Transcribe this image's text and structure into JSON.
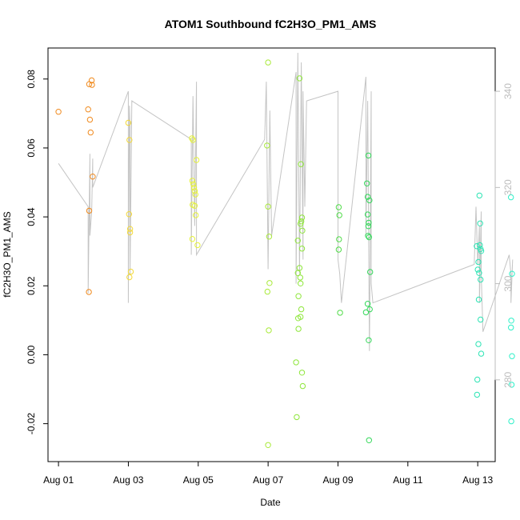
{
  "chart_data": {
    "type": "scatter",
    "title": "ATOM1 Southbound fC2H3O_PM1_AMS",
    "xlabel": "Date",
    "ylabel": "fC2H3O_PM1_AMS",
    "xlim": [
      -0.3,
      12.5
    ],
    "ylim": [
      -0.031,
      0.089
    ],
    "y2lim": [
      263,
      349
    ],
    "x_ticks": [
      {
        "value": 0,
        "label": "Aug 01"
      },
      {
        "value": 2,
        "label": "Aug 03"
      },
      {
        "value": 4,
        "label": "Aug 05"
      },
      {
        "value": 6,
        "label": "Aug 07"
      },
      {
        "value": 8,
        "label": "Aug 09"
      },
      {
        "value": 10,
        "label": "Aug 11"
      },
      {
        "value": 12,
        "label": "Aug 13"
      }
    ],
    "y_ticks": [
      {
        "value": -0.02,
        "label": "-0.02"
      },
      {
        "value": 0.0,
        "label": "0.00"
      },
      {
        "value": 0.02,
        "label": "0.02"
      },
      {
        "value": 0.04,
        "label": "0.04"
      },
      {
        "value": 0.06,
        "label": "0.06"
      },
      {
        "value": 0.08,
        "label": "0.08"
      }
    ],
    "y2_ticks": [
      {
        "value": 280,
        "label": "280"
      },
      {
        "value": 300,
        "label": "300"
      },
      {
        "value": 320,
        "label": "320"
      },
      {
        "value": 340,
        "label": "340"
      }
    ],
    "points": [
      {
        "x": 0.0,
        "y": 0.0705,
        "color": "#f08a1e"
      },
      {
        "x": 0.85,
        "y": 0.0712,
        "color": "#f08a1e"
      },
      {
        "x": 0.88,
        "y": 0.0785,
        "color": "#f08a1e"
      },
      {
        "x": 0.9,
        "y": 0.0682,
        "color": "#f08a1e"
      },
      {
        "x": 0.92,
        "y": 0.0645,
        "color": "#f08a1e"
      },
      {
        "x": 0.88,
        "y": 0.0418,
        "color": "#f08a1e"
      },
      {
        "x": 0.87,
        "y": 0.0182,
        "color": "#f08a1e"
      },
      {
        "x": 0.95,
        "y": 0.0796,
        "color": "#f08a1e"
      },
      {
        "x": 0.96,
        "y": 0.0783,
        "color": "#f08a1e"
      },
      {
        "x": 0.98,
        "y": 0.0517,
        "color": "#f08a1e"
      },
      {
        "x": 2.0,
        "y": 0.0673,
        "color": "#f3d93a"
      },
      {
        "x": 2.02,
        "y": 0.0408,
        "color": "#f3d93a"
      },
      {
        "x": 2.03,
        "y": 0.0623,
        "color": "#f3d93a"
      },
      {
        "x": 2.05,
        "y": 0.0365,
        "color": "#f3d93a"
      },
      {
        "x": 2.05,
        "y": 0.0355,
        "color": "#f3d93a"
      },
      {
        "x": 2.03,
        "y": 0.0225,
        "color": "#f3d93a"
      },
      {
        "x": 2.07,
        "y": 0.0241,
        "color": "#f3d93a"
      },
      {
        "x": 3.82,
        "y": 0.0628,
        "color": "#e6f23a"
      },
      {
        "x": 3.85,
        "y": 0.0623,
        "color": "#e6f23a"
      },
      {
        "x": 3.83,
        "y": 0.0505,
        "color": "#e6f23a"
      },
      {
        "x": 3.86,
        "y": 0.0495,
        "color": "#e6f23a"
      },
      {
        "x": 3.88,
        "y": 0.0485,
        "color": "#e6f23a"
      },
      {
        "x": 3.9,
        "y": 0.0475,
        "color": "#e6f23a"
      },
      {
        "x": 3.92,
        "y": 0.0465,
        "color": "#e6f23a"
      },
      {
        "x": 3.84,
        "y": 0.0435,
        "color": "#e6f23a"
      },
      {
        "x": 3.9,
        "y": 0.0432,
        "color": "#e6f23a"
      },
      {
        "x": 3.93,
        "y": 0.0405,
        "color": "#e6f23a"
      },
      {
        "x": 3.95,
        "y": 0.0565,
        "color": "#e6f23a"
      },
      {
        "x": 3.83,
        "y": 0.0336,
        "color": "#e6f23a"
      },
      {
        "x": 3.98,
        "y": 0.0318,
        "color": "#e6f23a"
      },
      {
        "x": 5.97,
        "y": 0.0607,
        "color": "#a9ea3a"
      },
      {
        "x": 6.0,
        "y": 0.0848,
        "color": "#a9ea3a"
      },
      {
        "x": 6.0,
        "y": 0.043,
        "color": "#a9ea3a"
      },
      {
        "x": 6.03,
        "y": 0.0343,
        "color": "#a9ea3a"
      },
      {
        "x": 6.04,
        "y": 0.0208,
        "color": "#a9ea3a"
      },
      {
        "x": 5.98,
        "y": 0.0183,
        "color": "#a9ea3a"
      },
      {
        "x": 6.02,
        "y": 0.0071,
        "color": "#a9ea3a"
      },
      {
        "x": 6.0,
        "y": -0.0262,
        "color": "#a9ea3a"
      },
      {
        "x": 6.9,
        "y": 0.0802,
        "color": "#8ee63a"
      },
      {
        "x": 6.94,
        "y": 0.0553,
        "color": "#8ee63a"
      },
      {
        "x": 6.97,
        "y": 0.0398,
        "color": "#8ee63a"
      },
      {
        "x": 6.95,
        "y": 0.0387,
        "color": "#8ee63a"
      },
      {
        "x": 6.93,
        "y": 0.038,
        "color": "#8ee63a"
      },
      {
        "x": 6.98,
        "y": 0.036,
        "color": "#8ee63a"
      },
      {
        "x": 6.85,
        "y": 0.0331,
        "color": "#8ee63a"
      },
      {
        "x": 6.97,
        "y": 0.0308,
        "color": "#8ee63a"
      },
      {
        "x": 6.85,
        "y": 0.0237,
        "color": "#8ee63a"
      },
      {
        "x": 6.9,
        "y": 0.0252,
        "color": "#8ee63a"
      },
      {
        "x": 6.92,
        "y": 0.0224,
        "color": "#8ee63a"
      },
      {
        "x": 6.93,
        "y": 0.0207,
        "color": "#8ee63a"
      },
      {
        "x": 6.87,
        "y": 0.017,
        "color": "#8ee63a"
      },
      {
        "x": 6.95,
        "y": 0.0132,
        "color": "#8ee63a"
      },
      {
        "x": 6.86,
        "y": 0.0106,
        "color": "#8ee63a"
      },
      {
        "x": 6.93,
        "y": 0.011,
        "color": "#8ee63a"
      },
      {
        "x": 6.87,
        "y": 0.0075,
        "color": "#8ee63a"
      },
      {
        "x": 6.8,
        "y": -0.0022,
        "color": "#8ee63a"
      },
      {
        "x": 6.97,
        "y": -0.0052,
        "color": "#8ee63a"
      },
      {
        "x": 6.99,
        "y": -0.0091,
        "color": "#8ee63a"
      },
      {
        "x": 6.82,
        "y": -0.0181,
        "color": "#8ee63a"
      },
      {
        "x": 8.02,
        "y": 0.0428,
        "color": "#52dc4a"
      },
      {
        "x": 8.04,
        "y": 0.0405,
        "color": "#52dc4a"
      },
      {
        "x": 8.03,
        "y": 0.0335,
        "color": "#52dc4a"
      },
      {
        "x": 8.02,
        "y": 0.0305,
        "color": "#52dc4a"
      },
      {
        "x": 8.06,
        "y": 0.0122,
        "color": "#52dc4a"
      },
      {
        "x": 8.87,
        "y": 0.0578,
        "color": "#34d85a"
      },
      {
        "x": 8.83,
        "y": 0.0497,
        "color": "#34d85a"
      },
      {
        "x": 8.85,
        "y": 0.0458,
        "color": "#34d85a"
      },
      {
        "x": 8.9,
        "y": 0.0448,
        "color": "#34d85a"
      },
      {
        "x": 8.85,
        "y": 0.0407,
        "color": "#34d85a"
      },
      {
        "x": 8.88,
        "y": 0.0383,
        "color": "#34d85a"
      },
      {
        "x": 8.87,
        "y": 0.0373,
        "color": "#34d85a"
      },
      {
        "x": 8.86,
        "y": 0.0345,
        "color": "#34d85a"
      },
      {
        "x": 8.89,
        "y": 0.0341,
        "color": "#34d85a"
      },
      {
        "x": 8.92,
        "y": 0.024,
        "color": "#34d85a"
      },
      {
        "x": 8.85,
        "y": 0.0148,
        "color": "#34d85a"
      },
      {
        "x": 8.91,
        "y": 0.0132,
        "color": "#34d85a"
      },
      {
        "x": 8.8,
        "y": 0.0123,
        "color": "#34d85a"
      },
      {
        "x": 8.88,
        "y": 0.0042,
        "color": "#34d85a"
      },
      {
        "x": 8.89,
        "y": -0.0248,
        "color": "#34d85a"
      },
      {
        "x": 11.97,
        "y": 0.0315,
        "color": "#2ce4b4"
      },
      {
        "x": 12.05,
        "y": 0.0462,
        "color": "#2ce4b4"
      },
      {
        "x": 12.07,
        "y": 0.0381,
        "color": "#2ce4b4"
      },
      {
        "x": 12.06,
        "y": 0.0318,
        "color": "#2ce4b4"
      },
      {
        "x": 12.08,
        "y": 0.0307,
        "color": "#2ce4b4"
      },
      {
        "x": 12.1,
        "y": 0.0301,
        "color": "#2ce4b4"
      },
      {
        "x": 12.02,
        "y": 0.0269,
        "color": "#2ce4b4"
      },
      {
        "x": 12.0,
        "y": 0.0247,
        "color": "#2ce4b4"
      },
      {
        "x": 12.04,
        "y": 0.0237,
        "color": "#2ce4b4"
      },
      {
        "x": 12.08,
        "y": 0.0218,
        "color": "#2ce4b4"
      },
      {
        "x": 12.03,
        "y": 0.016,
        "color": "#2ce4b4"
      },
      {
        "x": 12.08,
        "y": 0.0102,
        "color": "#2ce4b4"
      },
      {
        "x": 12.02,
        "y": 0.0031,
        "color": "#2ce4b4"
      },
      {
        "x": 12.1,
        "y": 0.0003,
        "color": "#2ce4b4"
      },
      {
        "x": 11.99,
        "y": -0.0072,
        "color": "#2ce4b4"
      },
      {
        "x": 11.98,
        "y": -0.0116,
        "color": "#2ce4b4"
      },
      {
        "x": 12.95,
        "y": 0.0457,
        "color": "#2cf0c8"
      },
      {
        "x": 12.98,
        "y": 0.0235,
        "color": "#2cf0c8"
      },
      {
        "x": 12.96,
        "y": 0.0099,
        "color": "#2cf0c8"
      },
      {
        "x": 12.95,
        "y": 0.0079,
        "color": "#2cf0c8"
      },
      {
        "x": 12.98,
        "y": -0.0004,
        "color": "#2cf0c8"
      },
      {
        "x": 12.97,
        "y": -0.0087,
        "color": "#2cf0c8"
      },
      {
        "x": 12.96,
        "y": -0.0193,
        "color": "#2cf0c8"
      }
    ],
    "secondary_trace": [
      [
        0.0,
        325
      ],
      [
        0.85,
        316
      ],
      [
        0.85,
        298
      ],
      [
        0.9,
        327
      ],
      [
        0.9,
        310
      ],
      [
        0.95,
        315
      ],
      [
        0.98,
        326
      ],
      [
        0.98,
        320
      ],
      [
        2.0,
        340
      ],
      [
        2.0,
        296
      ],
      [
        2.03,
        337
      ],
      [
        2.05,
        333
      ],
      [
        2.05,
        302
      ],
      [
        2.1,
        338
      ],
      [
        3.8,
        330
      ],
      [
        3.8,
        306
      ],
      [
        3.85,
        339
      ],
      [
        3.9,
        312
      ],
      [
        3.95,
        342
      ],
      [
        3.95,
        306
      ],
      [
        5.9,
        330
      ],
      [
        5.95,
        342
      ],
      [
        6.0,
        303
      ],
      [
        6.05,
        336
      ],
      [
        6.1,
        310
      ],
      [
        6.8,
        344
      ],
      [
        6.8,
        300
      ],
      [
        6.85,
        348
      ],
      [
        6.9,
        302
      ],
      [
        6.95,
        346
      ],
      [
        7.0,
        305
      ],
      [
        7.0,
        340
      ],
      [
        7.05,
        316
      ],
      [
        7.1,
        338
      ],
      [
        8.0,
        340
      ],
      [
        8.0,
        305
      ],
      [
        8.05,
        302
      ],
      [
        8.1,
        296
      ],
      [
        8.8,
        343
      ],
      [
        8.8,
        310
      ],
      [
        8.85,
        338
      ],
      [
        8.9,
        286
      ],
      [
        8.95,
        340
      ],
      [
        8.95,
        300
      ],
      [
        9.0,
        296
      ],
      [
        11.9,
        304
      ],
      [
        11.95,
        316
      ],
      [
        12.0,
        304
      ],
      [
        12.05,
        312
      ],
      [
        12.05,
        296
      ],
      [
        12.1,
        315
      ],
      [
        12.1,
        302
      ],
      [
        12.15,
        290
      ],
      [
        12.9,
        306
      ],
      [
        12.95,
        302
      ],
      [
        12.95,
        296
      ],
      [
        13.0,
        305
      ]
    ]
  }
}
